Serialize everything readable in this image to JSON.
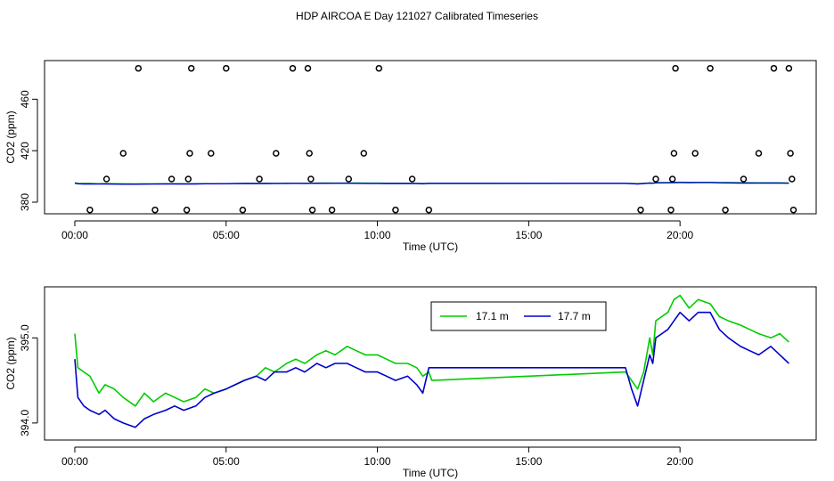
{
  "title": "HDP AIRCOA E  Day 121027  Calibrated Timeseries",
  "colors": {
    "series_17_1": "#00cc00",
    "series_17_7": "#0000cc",
    "axis": "#000000"
  },
  "chart_data": [
    {
      "type": "line+scatter",
      "xlabel": "Time (UTC)",
      "ylabel": "CO2 (ppm)",
      "xlim": [
        -1.0,
        24.5
      ],
      "ylim": [
        371,
        490
      ],
      "xticks": [
        0,
        5,
        10,
        15,
        20
      ],
      "xtick_labels": [
        "00:00",
        "05:00",
        "10:00",
        "15:00",
        "20:00"
      ],
      "yticks": [
        380,
        420,
        460
      ],
      "ytick_labels": [
        "380",
        "420",
        "460"
      ],
      "scatter": {
        "x": [
          0.5,
          1.05,
          1.6,
          2.1,
          2.65,
          3.2,
          3.7,
          3.75,
          3.8,
          3.85,
          4.5,
          5.0,
          5.55,
          6.1,
          6.65,
          7.2,
          7.7,
          7.75,
          7.8,
          7.85,
          8.5,
          9.05,
          9.55,
          10.05,
          10.6,
          11.15,
          11.7,
          18.7,
          19.2,
          19.7,
          19.75,
          19.8,
          19.85,
          20.5,
          21.0,
          21.5,
          22.1,
          22.6,
          23.1,
          23.6,
          23.65,
          23.7,
          23.75
        ],
        "y": [
          374,
          398,
          418,
          484,
          374,
          398,
          374,
          398,
          418,
          484,
          418,
          484,
          374,
          398,
          418,
          484,
          484,
          418,
          398,
          374,
          374,
          398,
          418,
          484,
          374,
          398,
          374,
          374,
          398,
          374,
          398,
          418,
          484,
          418,
          484,
          374,
          398,
          418,
          484,
          484,
          418,
          398,
          374
        ]
      }
    },
    {
      "type": "line",
      "xlabel": "Time (UTC)",
      "ylabel": "CO2 (ppm)",
      "xlim": [
        -1.0,
        24.5
      ],
      "ylim": [
        393.8,
        395.6
      ],
      "xticks": [
        0,
        5,
        10,
        15,
        20
      ],
      "xtick_labels": [
        "00:00",
        "05:00",
        "10:00",
        "15:00",
        "20:00"
      ],
      "yticks": [
        394.0,
        395.0
      ],
      "ytick_labels": [
        "394.0",
        "395.0"
      ],
      "legend_position": "top-right",
      "series": [
        {
          "name": "17.1 m",
          "color": "#00cc00",
          "x": [
            0.0,
            0.1,
            0.3,
            0.5,
            0.8,
            1.0,
            1.3,
            1.6,
            2.0,
            2.3,
            2.6,
            3.0,
            3.3,
            3.6,
            4.0,
            4.3,
            4.6,
            5.0,
            5.3,
            5.6,
            6.0,
            6.3,
            6.6,
            7.0,
            7.3,
            7.6,
            8.0,
            8.3,
            8.6,
            9.0,
            9.3,
            9.6,
            10.0,
            10.3,
            10.6,
            11.0,
            11.3,
            11.5,
            11.7,
            11.8,
            18.2,
            18.4,
            18.6,
            18.8,
            19.0,
            19.1,
            19.2,
            19.4,
            19.6,
            19.8,
            20.0,
            20.3,
            20.6,
            21.0,
            21.3,
            21.6,
            22.0,
            22.3,
            22.6,
            23.0,
            23.3,
            23.6
          ],
          "y": [
            395.05,
            394.65,
            394.6,
            394.55,
            394.35,
            394.45,
            394.4,
            394.3,
            394.2,
            394.35,
            394.25,
            394.35,
            394.3,
            394.25,
            394.3,
            394.4,
            394.35,
            394.4,
            394.45,
            394.5,
            394.55,
            394.65,
            394.6,
            394.7,
            394.75,
            394.7,
            394.8,
            394.85,
            394.8,
            394.9,
            394.85,
            394.8,
            394.8,
            394.75,
            394.7,
            394.7,
            394.65,
            394.55,
            394.6,
            394.5,
            394.6,
            394.5,
            394.4,
            394.6,
            395.0,
            394.8,
            395.2,
            395.25,
            395.3,
            395.45,
            395.5,
            395.35,
            395.45,
            395.4,
            395.25,
            395.2,
            395.15,
            395.1,
            395.05,
            395.0,
            395.05,
            394.95
          ]
        },
        {
          "name": "17.7 m",
          "color": "#0000cc",
          "x": [
            0.0,
            0.1,
            0.3,
            0.5,
            0.8,
            1.0,
            1.3,
            1.6,
            2.0,
            2.3,
            2.6,
            3.0,
            3.3,
            3.6,
            4.0,
            4.3,
            4.6,
            5.0,
            5.3,
            5.6,
            6.0,
            6.3,
            6.6,
            7.0,
            7.3,
            7.6,
            8.0,
            8.3,
            8.6,
            9.0,
            9.3,
            9.6,
            10.0,
            10.3,
            10.6,
            11.0,
            11.3,
            11.5,
            11.7,
            11.8,
            18.2,
            18.4,
            18.6,
            18.8,
            19.0,
            19.1,
            19.2,
            19.4,
            19.6,
            19.8,
            20.0,
            20.3,
            20.6,
            21.0,
            21.3,
            21.6,
            22.0,
            22.3,
            22.6,
            23.0,
            23.3,
            23.6
          ],
          "y": [
            394.75,
            394.3,
            394.2,
            394.15,
            394.1,
            394.15,
            394.05,
            394.0,
            393.95,
            394.05,
            394.1,
            394.15,
            394.2,
            394.15,
            394.2,
            394.3,
            394.35,
            394.4,
            394.45,
            394.5,
            394.55,
            394.5,
            394.6,
            394.6,
            394.65,
            394.6,
            394.7,
            394.65,
            394.7,
            394.7,
            394.65,
            394.6,
            394.6,
            394.55,
            394.5,
            394.55,
            394.45,
            394.35,
            394.65,
            394.65,
            394.65,
            394.4,
            394.2,
            394.5,
            394.8,
            394.7,
            395.0,
            395.05,
            395.1,
            395.2,
            395.3,
            395.2,
            395.3,
            395.3,
            395.1,
            395.0,
            394.9,
            394.85,
            394.8,
            394.9,
            394.8,
            394.7
          ]
        }
      ]
    }
  ]
}
